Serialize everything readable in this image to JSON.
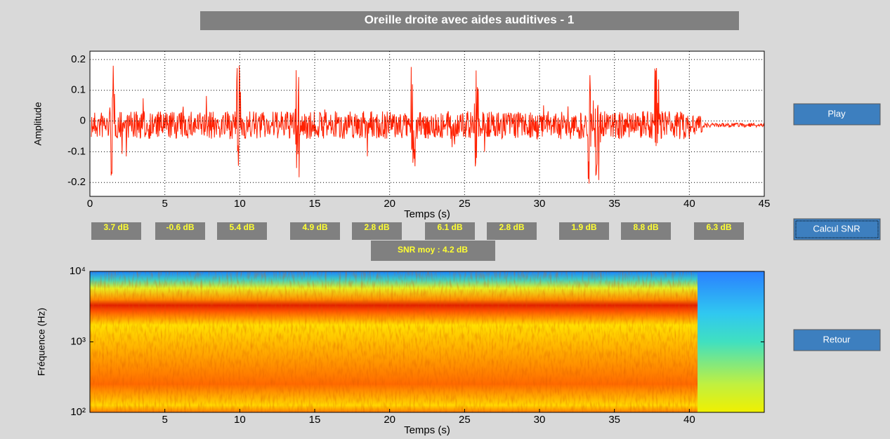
{
  "title": "Oreille droite avec aides auditives - 1",
  "buttons": [
    "Play",
    "Calcul SNR",
    "Retour"
  ],
  "snr_values": [
    "3.7 dB",
    "-0.6 dB",
    "5.4 dB",
    "4.9 dB",
    "2.8 dB",
    "6.1 dB",
    "2.8 dB",
    "1.9 dB",
    "8.8 dB",
    "6.3 dB"
  ],
  "snr_mean": "SNR moy : 4.2 dB",
  "chart_data": [
    {
      "type": "line",
      "xlabel": "Temps (s)",
      "ylabel": "Amplitude",
      "color": "#ff2000",
      "xlim": [
        0,
        45
      ],
      "xticks": [
        0,
        5,
        10,
        15,
        20,
        25,
        30,
        35,
        40,
        45
      ],
      "ylim": [
        -0.245,
        0.227
      ],
      "yticks": [
        -0.2,
        -0.1,
        0,
        0.1,
        0.2
      ],
      "grid": true
    },
    {
      "type": "spectrogram",
      "xlabel": "Temps (s)",
      "ylabel": "Fréquence (Hz)",
      "xlim": [
        0,
        45
      ],
      "xticks": [
        5,
        10,
        15,
        20,
        25,
        30,
        35,
        40
      ],
      "ylim": [
        100,
        10000
      ],
      "log_y": true,
      "yticks": [
        {
          "value": 100,
          "label": "10²"
        },
        {
          "value": 1000,
          "label": "10³"
        },
        {
          "value": 10000,
          "label": "10⁴"
        }
      ],
      "grid": false
    }
  ]
}
